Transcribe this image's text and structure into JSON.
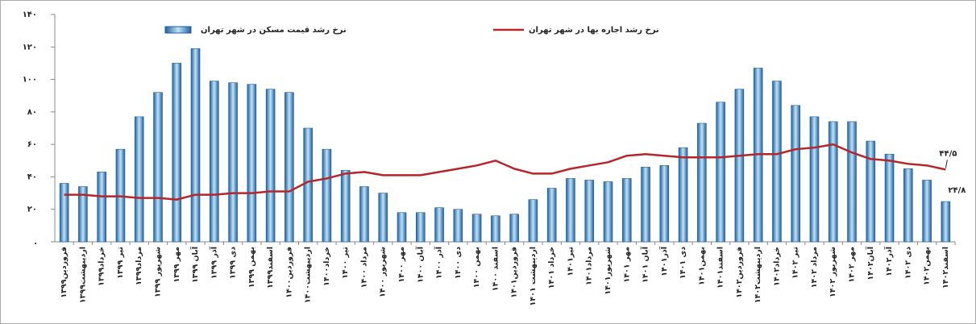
{
  "chart_data": {
    "type": "bar_line",
    "categories": [
      "فروردین۱۳۹۹",
      "اردیبهشت۱۳۹۹",
      "خرداد۱۳۹۹",
      "تیر ۱۳۹۹",
      "مرداد۱۳۹۹",
      "شهریور ۱۳۹۹",
      "مهر ۱۳۹۹",
      "آبان ۱۳۹۹",
      "آذر ۱۳۹۹",
      "دی ۱۳۹۹",
      "بهمن ۱۳۹۹",
      "اسفند۱۳۹۹",
      "فروردین۱۴۰۰",
      "اردیبهشت۱۴۰۰",
      "خرداد۱۴۰۰",
      "تیر ۱۴۰۰",
      "مرداد ۱۴۰۰",
      "شهریور ۱۴۰۰",
      "مهر ۱۴۰۰",
      "آبان ۱۴۰۰",
      "آذر ۱۴۰۰",
      "دی ۱۴۰۰",
      "بهمن ۱۴۰۰",
      "اسفند ۱۴۰۰",
      "فروردین۱۴۰۱",
      "اردیبهشت ۱۴۰۱",
      "خرداد ۱۴۰۱",
      "تیر۱۴۰۱",
      "مرداد۱۴۰۱",
      "شهریور۱۴۰۱",
      "مهر ۱۴۰۱",
      "آبان ۱۴۰۱",
      "آذر۱۴۰۱",
      "دی ۱۴۰۱",
      "بهمن۱۴۰۱",
      "اسفند۱۴۰۱",
      "فروردین۱۴۰۲",
      "اردیبهشت۱۴۰۲",
      "خرداد۱۴۰۲",
      "تیر ۱۴۰۲",
      "مرداد ۱۴۰۲",
      "شهریور ۱۴۰۲",
      "مهر ۱۴۰۲",
      "آبان۱۴۰۲",
      "آذر۱۴۰۲",
      "دی ۱۴۰۲",
      "بهمن۱۴۰۲",
      "اسفند۱۴۰۲"
    ],
    "series": [
      {
        "name": "نرخ رشد قیمت مسکن در شهر تهران",
        "type": "bar",
        "color": "#1f5f9e",
        "values": [
          36,
          34,
          43,
          57,
          77,
          92,
          110,
          119,
          99,
          98,
          97,
          94,
          92,
          70,
          57,
          44,
          34,
          30,
          18,
          18,
          21,
          20,
          17,
          16,
          17,
          26,
          33,
          39,
          38,
          37,
          39,
          46,
          47,
          58,
          73,
          86,
          94,
          107,
          99,
          84,
          77,
          74,
          74,
          62,
          54,
          45,
          38,
          24.8
        ],
        "value_labels": [
          null,
          null,
          null,
          null,
          null,
          null,
          null,
          null,
          null,
          null,
          null,
          null,
          null,
          null,
          null,
          null,
          null,
          null,
          null,
          null,
          null,
          null,
          null,
          null,
          null,
          null,
          null,
          null,
          null,
          null,
          null,
          null,
          null,
          null,
          null,
          null,
          null,
          null,
          null,
          null,
          null,
          null,
          null,
          null,
          null,
          null,
          null,
          "۲۴/۸"
        ]
      },
      {
        "name": "نرخ رشد اجاره بها در شهر تهران",
        "type": "line",
        "color": "#b5262b",
        "values": [
          29,
          29,
          28,
          28,
          27,
          27,
          26,
          29,
          29,
          30,
          30,
          31,
          31,
          37,
          39,
          42,
          43,
          41,
          41,
          41,
          43,
          45,
          47,
          50,
          45,
          42,
          42,
          45,
          47,
          49,
          53,
          54,
          53,
          52,
          52,
          52,
          53,
          54,
          54,
          57,
          58,
          60,
          55,
          51,
          50,
          48,
          47,
          44.5
        ],
        "value_labels": [
          null,
          null,
          null,
          null,
          null,
          null,
          null,
          null,
          null,
          null,
          null,
          null,
          null,
          null,
          null,
          null,
          null,
          null,
          null,
          null,
          null,
          null,
          null,
          null,
          null,
          null,
          null,
          null,
          null,
          null,
          null,
          null,
          null,
          null,
          null,
          null,
          null,
          null,
          null,
          null,
          null,
          null,
          null,
          null,
          null,
          null,
          null,
          "۴۴/۵"
        ]
      }
    ],
    "ylim": [
      0,
      140
    ],
    "yticks": [
      {
        "value": 0,
        "label": "."
      },
      {
        "value": 20,
        "label": "۲۰"
      },
      {
        "value": 40,
        "label": "۴۰"
      },
      {
        "value": 60,
        "label": "۶۰"
      },
      {
        "value": 80,
        "label": "۸۰"
      },
      {
        "value": 100,
        "label": "۱۰۰"
      },
      {
        "value": 120,
        "label": "۱۲۰"
      },
      {
        "value": 140,
        "label": "۱۴۰"
      }
    ]
  }
}
